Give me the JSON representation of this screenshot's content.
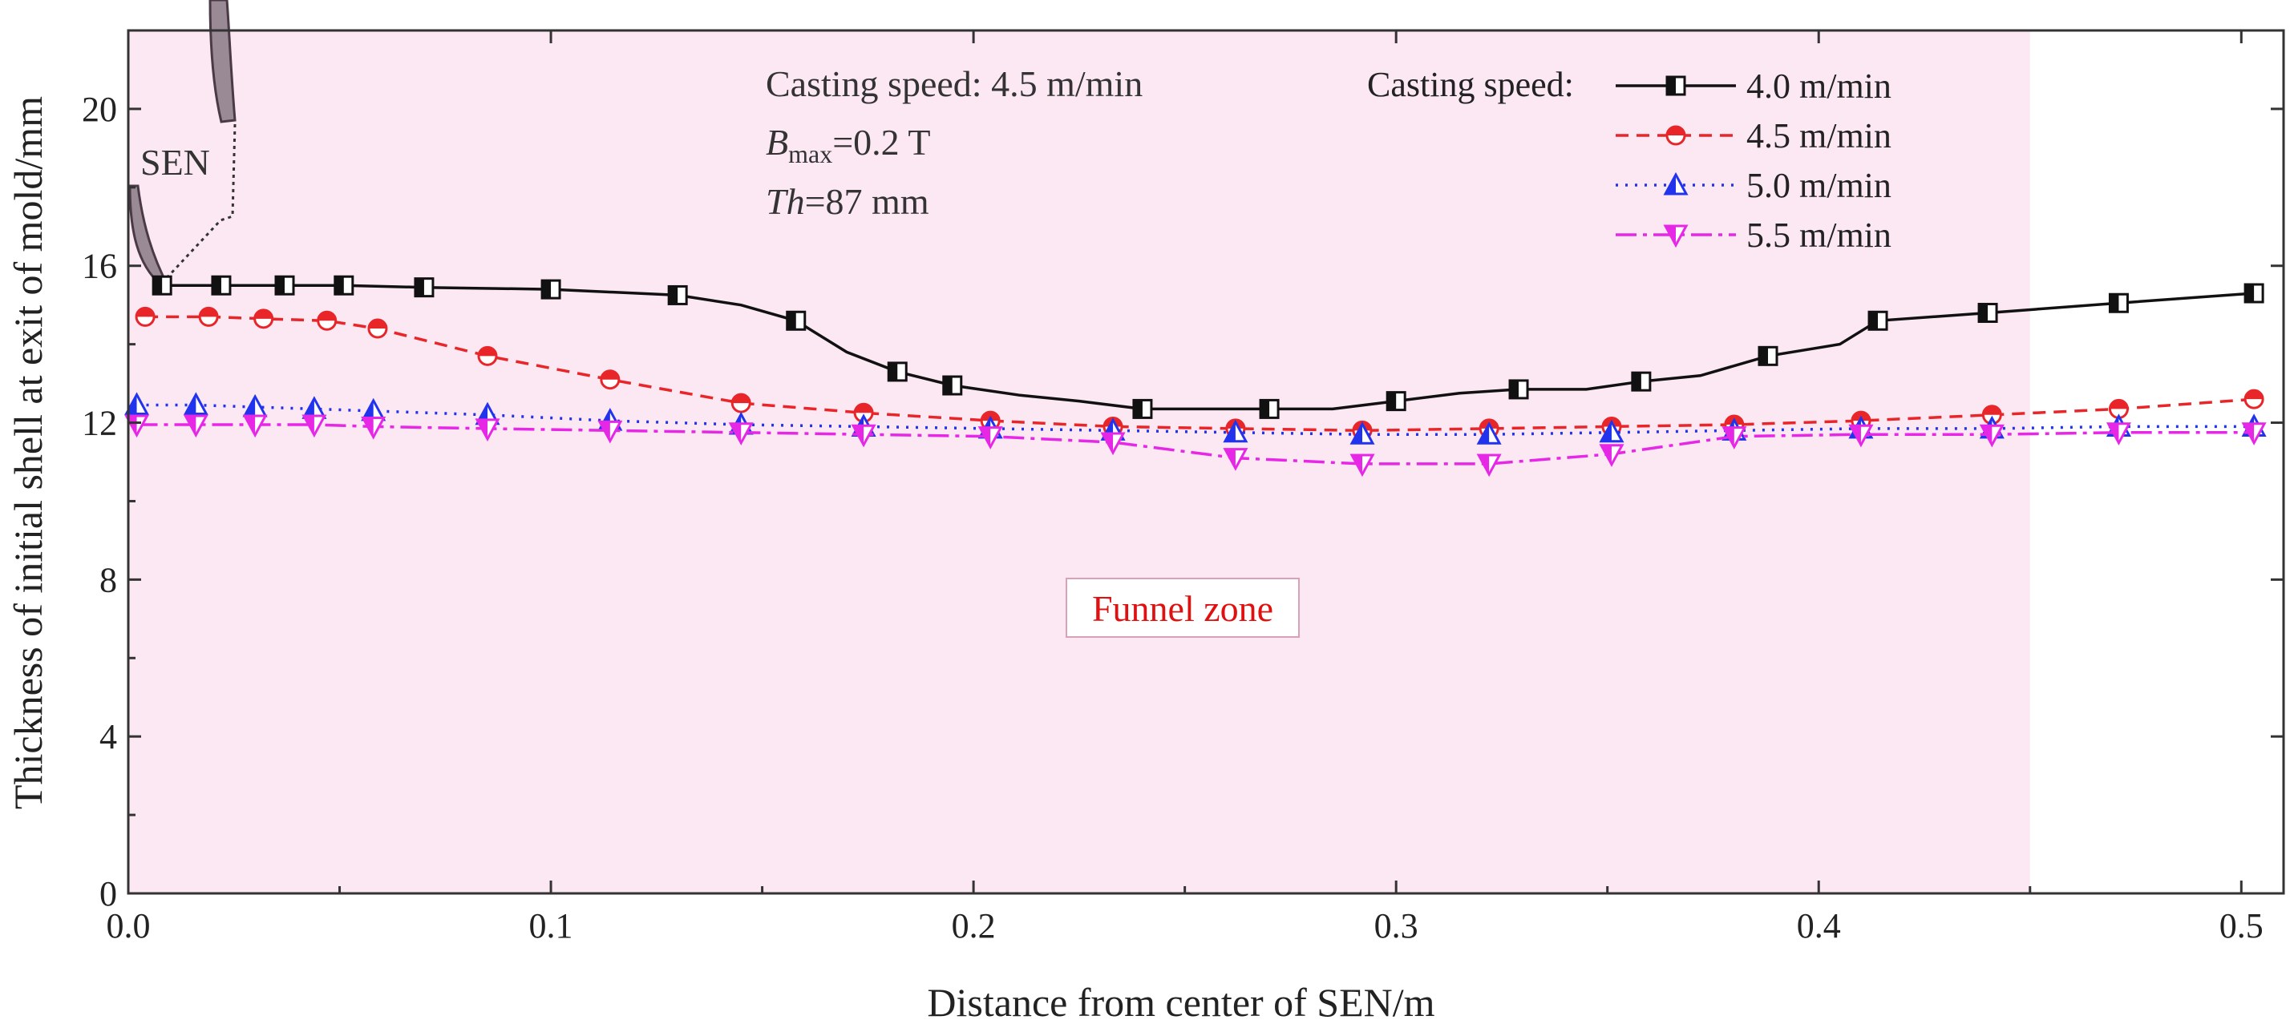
{
  "chart_data": {
    "type": "line",
    "xlabel": "Distance from center of SEN/m",
    "ylabel": "Thickness of initial shell at exit of mold/mm",
    "xlim": [
      0.0,
      0.51
    ],
    "ylim": [
      0,
      22
    ],
    "xticks": [
      0.0,
      0.1,
      0.2,
      0.3,
      0.4,
      0.5
    ],
    "xtick_labels": [
      "0.0",
      "0.1",
      "0.2",
      "0.3",
      "0.4",
      "0.5"
    ],
    "yticks": [
      0,
      4,
      8,
      12,
      16,
      20
    ],
    "ytick_labels": [
      "0",
      "4",
      "8",
      "12",
      "16",
      "20"
    ],
    "grid": false,
    "legend_position": "top-right",
    "legend_title": "Casting speed:",
    "funnel_zone": {
      "label": "Funnel zone",
      "x_start": 0.0,
      "x_end": 0.45,
      "color": "#fce8f2"
    },
    "sen_label": "SEN",
    "annotations": {
      "speed_line": "Casting speed: 4.5 m/min",
      "bmax_prefix": "B",
      "bmax_sub": "max",
      "bmax_value": "=0.2 T",
      "th_prefix": "Th",
      "th_value": "=87 mm"
    },
    "series": [
      {
        "name": "4.0 m/min",
        "color": "#111111",
        "dash": "none",
        "marker": "square",
        "x": [
          0.008,
          0.022,
          0.037,
          0.051,
          0.07,
          0.1,
          0.13,
          0.145,
          0.158,
          0.17,
          0.182,
          0.195,
          0.211,
          0.225,
          0.24,
          0.255,
          0.27,
          0.285,
          0.3,
          0.315,
          0.329,
          0.345,
          0.358,
          0.372,
          0.388,
          0.405,
          0.414,
          0.44,
          0.471,
          0.503
        ],
        "y": [
          15.5,
          15.5,
          15.5,
          15.5,
          15.45,
          15.4,
          15.25,
          15.0,
          14.6,
          13.8,
          13.3,
          12.95,
          12.7,
          12.55,
          12.35,
          12.35,
          12.35,
          12.35,
          12.55,
          12.75,
          12.85,
          12.85,
          13.05,
          13.2,
          13.7,
          14.0,
          14.6,
          14.8,
          15.05,
          15.3
        ],
        "marker_idx": [
          0,
          1,
          2,
          3,
          4,
          5,
          6,
          8,
          10,
          11,
          14,
          16,
          18,
          20,
          22,
          24,
          26,
          27,
          28,
          29
        ]
      },
      {
        "name": "4.5 m/min",
        "color": "#e8262a",
        "dash": "16 10",
        "marker": "circle",
        "x": [
          0.004,
          0.019,
          0.032,
          0.047,
          0.059,
          0.085,
          0.114,
          0.145,
          0.174,
          0.204,
          0.233,
          0.262,
          0.292,
          0.322,
          0.351,
          0.38,
          0.41,
          0.441,
          0.471,
          0.503
        ],
        "y": [
          14.7,
          14.7,
          14.65,
          14.6,
          14.4,
          13.7,
          13.1,
          12.5,
          12.25,
          12.05,
          11.9,
          11.85,
          11.8,
          11.85,
          11.9,
          11.95,
          12.05,
          12.2,
          12.35,
          12.6
        ],
        "marker_idx": [
          0,
          1,
          2,
          3,
          4,
          5,
          6,
          7,
          8,
          9,
          10,
          11,
          12,
          13,
          14,
          15,
          16,
          17,
          18,
          19
        ]
      },
      {
        "name": "5.0 m/min",
        "color": "#2233ee",
        "dash": "3 9",
        "marker": "triangle-up",
        "x": [
          0.002,
          0.016,
          0.03,
          0.044,
          0.058,
          0.085,
          0.114,
          0.145,
          0.174,
          0.204,
          0.233,
          0.262,
          0.292,
          0.322,
          0.351,
          0.38,
          0.41,
          0.441,
          0.471,
          0.503
        ],
        "y": [
          12.45,
          12.45,
          12.4,
          12.35,
          12.3,
          12.2,
          12.05,
          11.95,
          11.9,
          11.85,
          11.8,
          11.75,
          11.7,
          11.7,
          11.75,
          11.8,
          11.85,
          11.85,
          11.9,
          11.9
        ],
        "marker_idx": [
          0,
          1,
          2,
          3,
          4,
          5,
          6,
          7,
          8,
          9,
          10,
          11,
          12,
          13,
          14,
          15,
          16,
          17,
          18,
          19
        ]
      },
      {
        "name": "5.5 m/min",
        "color": "#e627e6",
        "dash": "26 8 5 8",
        "marker": "triangle-down",
        "x": [
          0.002,
          0.016,
          0.03,
          0.044,
          0.058,
          0.085,
          0.114,
          0.145,
          0.174,
          0.204,
          0.233,
          0.262,
          0.292,
          0.322,
          0.351,
          0.38,
          0.41,
          0.441,
          0.471,
          0.503
        ],
        "y": [
          11.95,
          11.95,
          11.95,
          11.95,
          11.9,
          11.85,
          11.8,
          11.75,
          11.7,
          11.65,
          11.5,
          11.1,
          10.95,
          10.95,
          11.2,
          11.65,
          11.7,
          11.7,
          11.75,
          11.75
        ],
        "marker_idx": [
          0,
          1,
          2,
          3,
          4,
          5,
          6,
          7,
          8,
          9,
          10,
          11,
          12,
          13,
          14,
          15,
          16,
          17,
          18,
          19
        ]
      }
    ]
  }
}
